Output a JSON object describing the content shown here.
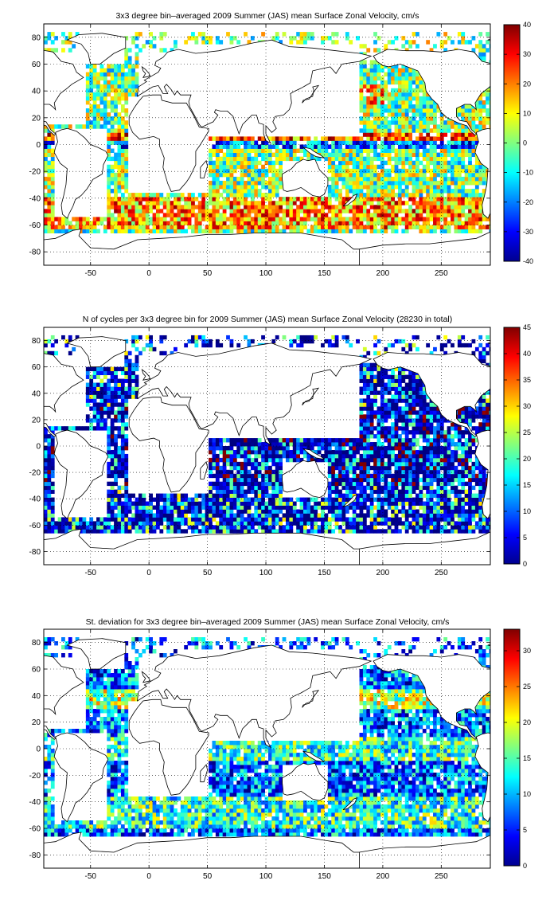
{
  "chart_data": [
    {
      "type": "heatmap",
      "title": "3x3 degree bin–averaged 2009 Summer (JAS) mean Surface Zonal Velocity, cm/s",
      "xlabel": "",
      "ylabel": "",
      "xlim": [
        -90,
        292
      ],
      "ylim": [
        -90,
        90
      ],
      "x_ticks": [
        -50,
        0,
        50,
        100,
        150,
        200,
        250
      ],
      "y_ticks": [
        80,
        60,
        40,
        20,
        0,
        -20,
        -40,
        -60,
        -80
      ],
      "grid": true,
      "colormap": "jet",
      "clim": [
        -40,
        40
      ],
      "colorbar_ticks": [
        40,
        30,
        20,
        10,
        0,
        -10,
        -20,
        -30,
        -40
      ],
      "bin_size_deg": 3
    },
    {
      "type": "heatmap",
      "title": "N of cycles per 3x3 degree bin for 2009 Summer (JAS) mean Surface Zonal Velocity (28230 in total)",
      "xlabel": "",
      "ylabel": "",
      "xlim": [
        -90,
        292
      ],
      "ylim": [
        -90,
        90
      ],
      "x_ticks": [
        -50,
        0,
        50,
        100,
        150,
        200,
        250
      ],
      "y_ticks": [
        80,
        60,
        40,
        20,
        0,
        -20,
        -40,
        -60,
        -80
      ],
      "grid": true,
      "colormap": "jet",
      "clim": [
        0,
        45
      ],
      "colorbar_ticks": [
        45,
        40,
        35,
        30,
        25,
        20,
        15,
        10,
        5,
        0
      ],
      "bin_size_deg": 3,
      "total_cycles": 28230
    },
    {
      "type": "heatmap",
      "title": "St. deviation for 3x3 degree bin–averaged 2009 Summer (JAS) mean Surface Zonal Velocity, cm/s",
      "xlabel": "",
      "ylabel": "",
      "xlim": [
        -90,
        292
      ],
      "ylim": [
        -90,
        90
      ],
      "x_ticks": [
        -50,
        0,
        50,
        100,
        150,
        200,
        250
      ],
      "y_ticks": [
        80,
        60,
        40,
        20,
        0,
        -20,
        -40,
        -60,
        -80
      ],
      "grid": true,
      "colormap": "jet",
      "clim": [
        0,
        33
      ],
      "colorbar_ticks": [
        30,
        25,
        20,
        15,
        10,
        5,
        0
      ],
      "bin_size_deg": 3
    }
  ]
}
